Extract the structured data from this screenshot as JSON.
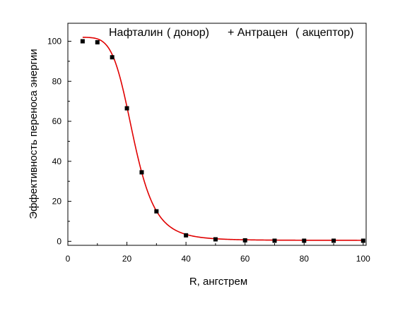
{
  "chart_data": {
    "type": "scatter",
    "title": "Нафталин (донор) + Антрацен (акцептор)",
    "title_parts": [
      "Нафталин",
      "( донор)",
      "+ Антрацен",
      "( акцептор)"
    ],
    "xlabel": "R, ангстрем",
    "ylabel": "Эффективность переноса энергии",
    "xlim": [
      0,
      101
    ],
    "ylim": [
      -2,
      109
    ],
    "x_ticks": [
      0,
      20,
      40,
      60,
      80,
      100
    ],
    "y_ticks": [
      0,
      20,
      40,
      60,
      80,
      100
    ],
    "x_tick_labels": [
      "0",
      "20",
      "40",
      "60",
      "80",
      "100"
    ],
    "y_tick_labels": [
      "0",
      "20",
      "40",
      "60",
      "80",
      "100"
    ],
    "grid": false,
    "legend": "none",
    "series": [
      {
        "kind": "points",
        "marker": "square",
        "color": "#000000",
        "x": [
          5,
          10,
          15,
          20,
          25,
          30,
          40,
          50,
          60,
          70,
          80,
          90,
          100
        ],
        "y": [
          100,
          99.5,
          92,
          66.5,
          34.5,
          15,
          3,
          1,
          0.5,
          0.3,
          0.3,
          0.3,
          0.3
        ]
      },
      {
        "kind": "fit-curve",
        "color": "#e00000",
        "model": "FRET: E = A / (1 + (R/R0)^6) + offset",
        "params": {
          "A": 101.5,
          "R0": 22.3,
          "offset": 0.5
        },
        "x_range": [
          5,
          100
        ]
      }
    ]
  }
}
